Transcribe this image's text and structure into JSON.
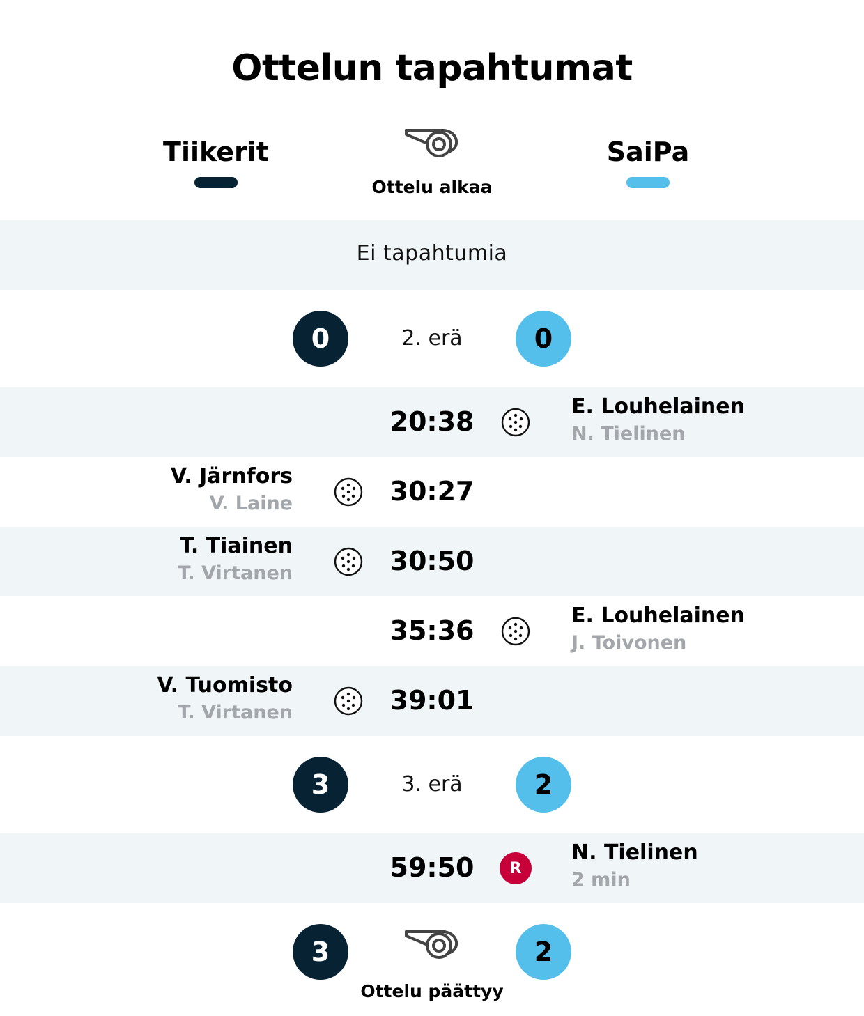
{
  "title": "Ottelun tapahtumat",
  "colors": {
    "home": "#062233",
    "away": "#55bfec",
    "penalty": "#c8003a"
  },
  "teams": {
    "home": "Tiikerit",
    "away": "SaiPa"
  },
  "start": {
    "label": "Ottelu alkaa",
    "icon": "whistle-icon"
  },
  "first_period": {
    "no_events": "Ei tapahtumia"
  },
  "period2": {
    "label": "2. erä",
    "home_score": "0",
    "away_score": "0"
  },
  "events_p2": [
    {
      "side": "away",
      "time": "20:38",
      "type": "goal",
      "icon": "floorball-icon",
      "player": "E. Louhelainen",
      "assist": "N. Tielinen"
    },
    {
      "side": "home",
      "time": "30:27",
      "type": "goal",
      "icon": "floorball-icon",
      "player": "V. Järnfors",
      "assist": "V. Laine"
    },
    {
      "side": "home",
      "time": "30:50",
      "type": "goal",
      "icon": "floorball-icon",
      "player": "T. Tiainen",
      "assist": "T. Virtanen"
    },
    {
      "side": "away",
      "time": "35:36",
      "type": "goal",
      "icon": "floorball-icon",
      "player": "E. Louhelainen",
      "assist": "J. Toivonen"
    },
    {
      "side": "home",
      "time": "39:01",
      "type": "goal",
      "icon": "floorball-icon",
      "player": "V. Tuomisto",
      "assist": "T. Virtanen"
    }
  ],
  "period3": {
    "label": "3. erä",
    "home_score": "3",
    "away_score": "2"
  },
  "events_p3": [
    {
      "side": "away",
      "time": "59:50",
      "type": "penalty",
      "badge": "R",
      "player": "N. Tielinen",
      "detail": "2 min"
    }
  ],
  "end": {
    "label": "Ottelu päättyy",
    "icon": "whistle-icon",
    "home_score": "3",
    "away_score": "2"
  }
}
